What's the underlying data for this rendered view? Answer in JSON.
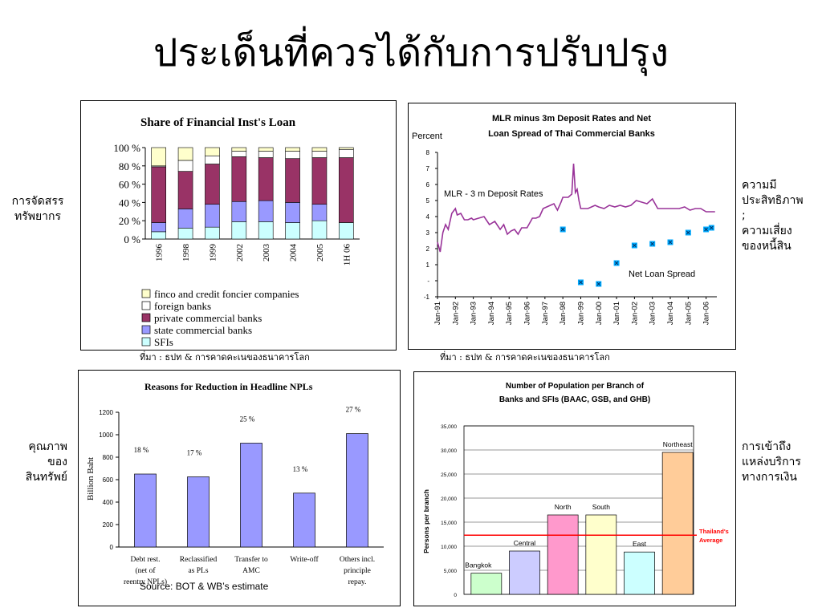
{
  "slide": {
    "title": "ประเด็นที่ควรได้กับการปรับปรุง",
    "left_label_1": [
      "การจัดสรร",
      "ทรัพยากร"
    ],
    "left_label_2": [
      "คุณภาพ",
      "ของ",
      "สินทรัพย์"
    ],
    "right_label_1": [
      "ความมี",
      "ประสิทธิภาพ",
      ";",
      "ความเสี่ยง",
      "ของหนี้สิน"
    ],
    "right_label_2": [
      "การเข้าถึง",
      "แหล่งบริการ",
      "ทางการเงิน"
    ],
    "source_1": "ที่มา : ธปท & การคาดคะเนของธนาคารโลก",
    "source_2": "ที่มา : ธปท & การคาดคะเนของธนาคารโลก",
    "source_3": "Source: BOT & WB’s estimate"
  },
  "colors": {
    "finco": "#ffffcc",
    "foreign": "#ffffff",
    "private": "#993366",
    "state": "#9999ff",
    "sfi": "#ccffff",
    "mlr_line": "#993399",
    "spread_marker": "#00aaff",
    "npl_bar": "#9999ff",
    "avg_line": "#ff0000",
    "bangkok": "#ccffcc",
    "central": "#ccccff",
    "north": "#ff99cc",
    "south": "#ffffcc",
    "east": "#ccffff",
    "northeast": "#ffcc99"
  },
  "chart_data": [
    {
      "type": "bar",
      "title": "Share of Financial Inst's Loan",
      "categories": [
        "1996",
        "1998",
        "1999",
        "2002",
        "2003",
        "2004",
        "2005",
        "1H 06"
      ],
      "ylim": [
        0,
        100
      ],
      "yticks": [
        "100 %",
        "80 %",
        "60 %",
        "40 %",
        "20 %",
        "0 %"
      ],
      "stacked": true,
      "series": [
        {
          "name": "SFIs",
          "values": [
            8,
            12,
            13,
            19,
            19,
            18,
            20,
            18
          ]
        },
        {
          "name": "state commercial banks",
          "values": [
            10,
            21,
            25,
            22,
            23,
            22,
            18,
            0
          ]
        },
        {
          "name": "private commercial banks",
          "values": [
            61,
            41,
            44,
            49,
            47,
            48,
            51,
            71
          ]
        },
        {
          "name": "foreign banks",
          "values": [
            1,
            12,
            9,
            6,
            7,
            8,
            7,
            9
          ]
        },
        {
          "name": "finco and credit foncier companies",
          "values": [
            20,
            14,
            9,
            4,
            4,
            4,
            4,
            2
          ]
        }
      ],
      "legend_order": [
        "finco and credit foncier companies",
        "foreign banks",
        "private commercial banks",
        "state commercial banks",
        "SFIs"
      ]
    },
    {
      "type": "line",
      "title": "MLR minus 3m Deposit Rates and Net Loan Spread of Thai Commercial Banks",
      "ylabel": "Percent",
      "ylim": [
        -1,
        8
      ],
      "yticks": [
        "8",
        "7",
        "6",
        "5",
        "4",
        "3",
        "2",
        "1",
        "-",
        "-1"
      ],
      "xticks": [
        "Jan-91",
        "Jan-92",
        "Jan-93",
        "Jan-94",
        "Jan-95",
        "Jan-96",
        "Jan-97",
        "Jan-98",
        "Jan-99",
        "Jan-00",
        "Jan-01",
        "Jan-02",
        "Jan-03",
        "Jan-04",
        "Jan-05",
        "Jan-06"
      ],
      "series": [
        {
          "name": "MLR - 3 m Deposit Rates",
          "x": [
            1991.0,
            1991.15,
            1991.3,
            1991.45,
            1991.6,
            1991.8,
            1992.0,
            1992.1,
            1992.3,
            1992.5,
            1992.7,
            1992.9,
            1993.0,
            1993.3,
            1993.6,
            1993.9,
            1994.2,
            1994.5,
            1994.7,
            1994.9,
            1995.1,
            1995.3,
            1995.5,
            1995.7,
            1996.0,
            1996.3,
            1996.5,
            1996.7,
            1996.9,
            1997.1,
            1997.3,
            1997.5,
            1997.7,
            1997.9,
            1998.0,
            1998.3,
            1998.5,
            1998.6,
            1998.7,
            1998.8,
            1998.9,
            1999.0,
            1999.2,
            1999.4,
            1999.6,
            1999.8,
            2000.0,
            2000.3,
            2000.6,
            2000.9,
            2001.2,
            2001.5,
            2001.8,
            2002.1,
            2002.4,
            2002.7,
            2003.0,
            2003.3,
            2003.6,
            2003.9,
            2004.2,
            2004.5,
            2004.8,
            2005.1,
            2005.4,
            2005.7,
            2006.0,
            2006.2,
            2006.5
          ],
          "y": [
            2.4,
            1.8,
            3.0,
            3.5,
            3.2,
            4.2,
            4.5,
            4.1,
            4.2,
            3.8,
            3.8,
            3.9,
            3.8,
            3.9,
            4.0,
            3.5,
            3.7,
            3.2,
            3.5,
            2.9,
            3.1,
            3.2,
            2.9,
            3.3,
            3.3,
            3.9,
            3.9,
            4.0,
            4.5,
            4.6,
            4.7,
            4.8,
            4.4,
            4.9,
            5.2,
            5.2,
            5.4,
            7.3,
            5.5,
            5.7,
            5.0,
            4.5,
            4.5,
            4.5,
            4.6,
            4.7,
            4.6,
            4.5,
            4.7,
            4.6,
            4.7,
            4.6,
            4.7,
            5.0,
            4.9,
            4.8,
            5.1,
            4.5,
            4.5,
            4.5,
            4.5,
            4.5,
            4.6,
            4.4,
            4.5,
            4.5,
            4.3,
            4.3,
            4.3
          ]
        },
        {
          "name": "Net Loan Spread",
          "x": [
            1998.0,
            1999.0,
            2000.0,
            2001.0,
            2002.0,
            2003.0,
            2004.0,
            2005.0,
            2006.0,
            2006.3
          ],
          "y": [
            3.2,
            -0.1,
            -0.2,
            1.1,
            2.2,
            2.3,
            2.4,
            3.0,
            3.2,
            3.3
          ]
        }
      ]
    },
    {
      "type": "bar",
      "title": "Reasons for Reduction in Headline NPLs",
      "ylabel": "Billion Baht",
      "ylim": [
        0,
        1200
      ],
      "yticks": [
        "1200",
        "1000",
        "800",
        "600",
        "400",
        "200",
        "0"
      ],
      "categories": [
        [
          "Debt rest.",
          "(net of",
          "reentry NPLs)"
        ],
        [
          "Reclassified",
          "as PLs"
        ],
        [
          "Transfer to",
          "AMC"
        ],
        [
          "Write-off"
        ],
        [
          "Others incl.",
          "principle",
          "repay."
        ]
      ],
      "values": [
        650,
        625,
        925,
        480,
        1010
      ],
      "data_labels": [
        "18 %",
        "17 %",
        "25 %",
        "13 %",
        "27 %"
      ]
    },
    {
      "type": "bar",
      "title": "Number of Population per Branch of Banks and SFIs (BAAC, GSB, and GHB)",
      "ylabel": "Persons per branch",
      "ylim": [
        0,
        35000
      ],
      "yticks": [
        "35,000",
        "30,000",
        "25,000",
        "20,000",
        "15,000",
        "10,000",
        "5,000",
        "0"
      ],
      "categories": [
        "Bangkok",
        "Central",
        "North",
        "South",
        "East",
        "Northeast"
      ],
      "values": [
        4400,
        9000,
        16500,
        16500,
        8800,
        29500
      ],
      "reference_line": {
        "label": [
          "Thailand's",
          "Average"
        ],
        "value": 12300
      }
    }
  ]
}
